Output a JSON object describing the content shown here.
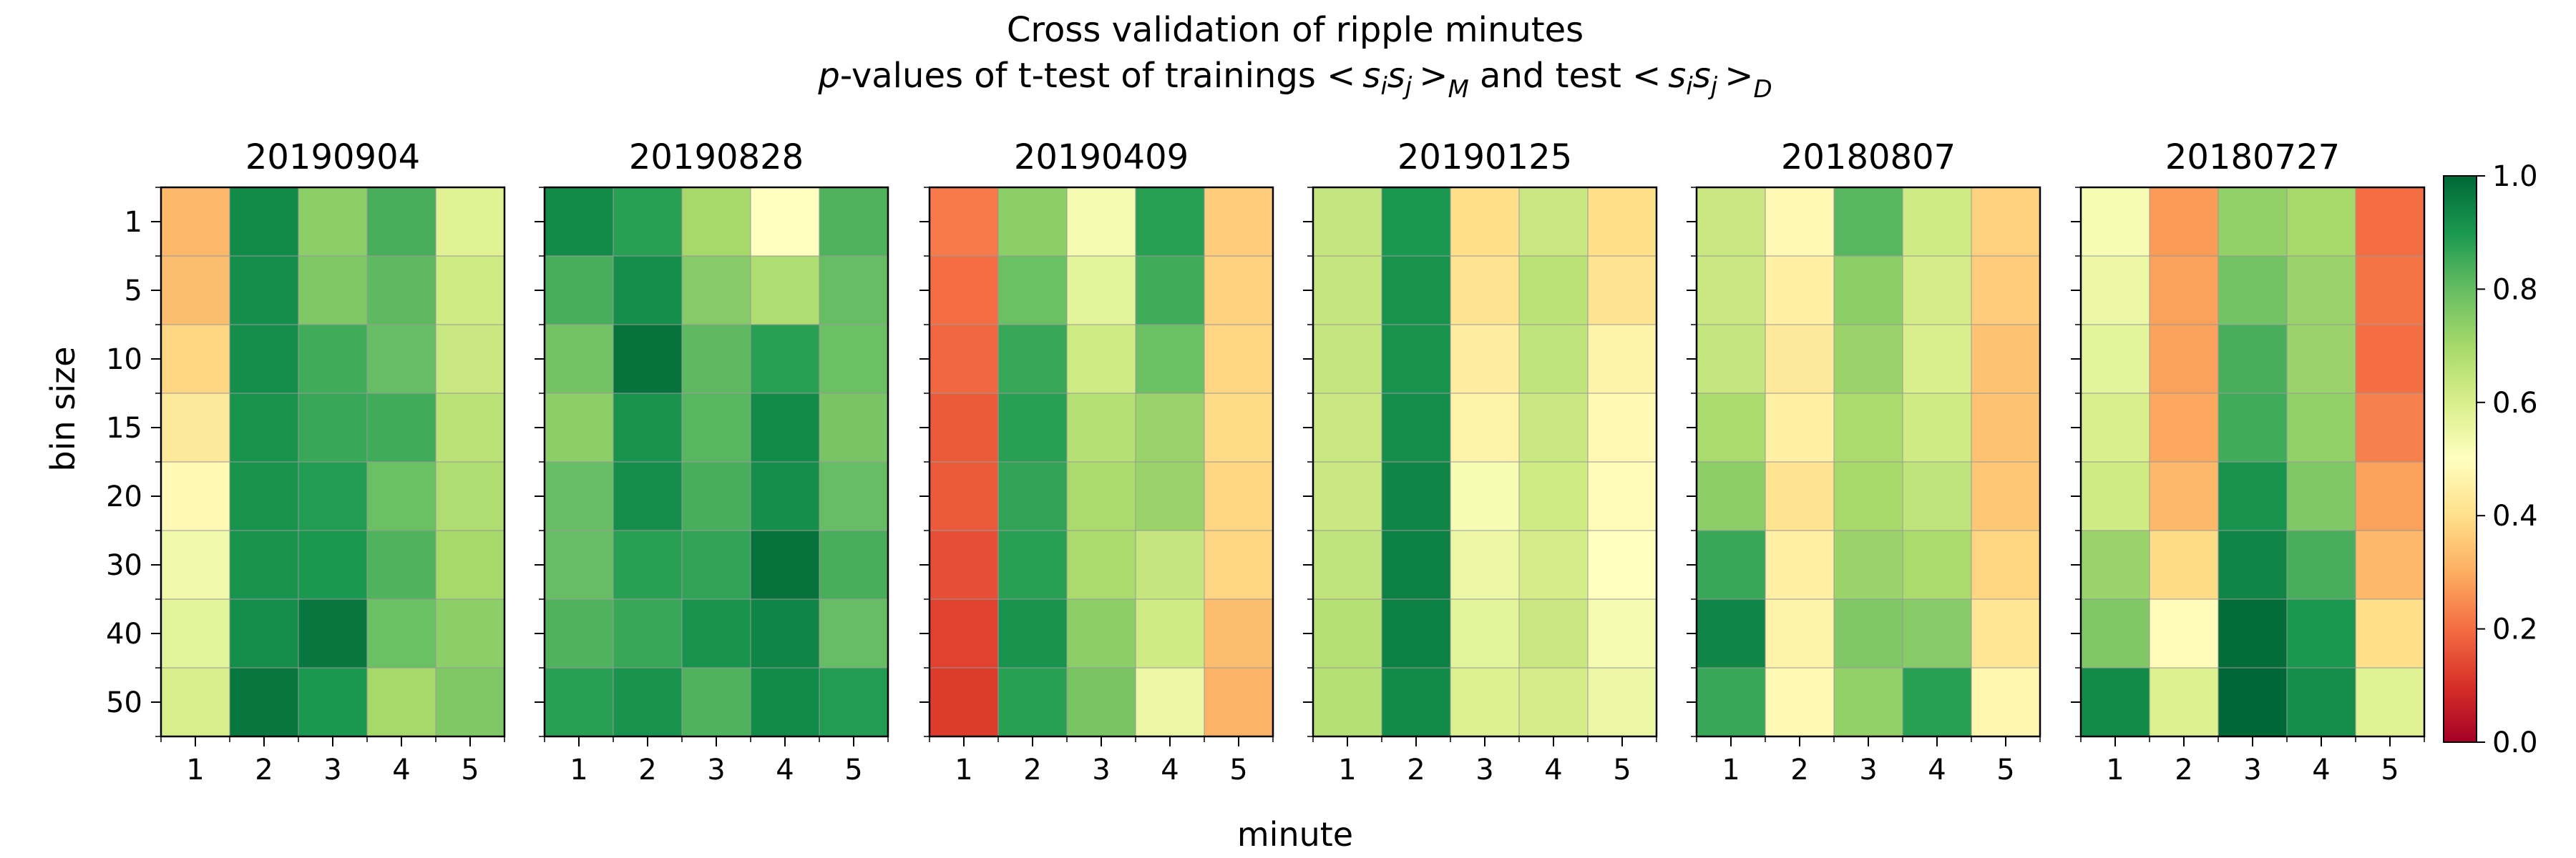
{
  "suptitle": {
    "line1": "Cross validation of ripple minutes",
    "line2_italic_p": "p",
    "line2_a": "-values of t-test of trainings ",
    "line2_b": " and test "
  },
  "xlabel": "minute",
  "ylabel": "bin size",
  "colorbar": {
    "colormap": "RdYlGn",
    "ticks": [
      "0.0",
      "0.2",
      "0.4",
      "0.6",
      "0.8",
      "1.0"
    ],
    "range": [
      0,
      1
    ]
  },
  "chart_data": [
    {
      "type": "heatmap",
      "title": "20190904",
      "x": [
        "1",
        "2",
        "3",
        "4",
        "5"
      ],
      "y": [
        "1",
        "5",
        "10",
        "15",
        "20",
        "30",
        "40",
        "50"
      ],
      "values": [
        [
          0.32,
          0.93,
          0.74,
          0.84,
          0.58
        ],
        [
          0.33,
          0.92,
          0.76,
          0.81,
          0.62
        ],
        [
          0.38,
          0.92,
          0.85,
          0.8,
          0.63
        ],
        [
          0.43,
          0.91,
          0.86,
          0.85,
          0.66
        ],
        [
          0.48,
          0.91,
          0.89,
          0.79,
          0.68
        ],
        [
          0.54,
          0.91,
          0.9,
          0.83,
          0.7
        ],
        [
          0.57,
          0.92,
          0.97,
          0.79,
          0.74
        ],
        [
          0.6,
          0.97,
          0.9,
          0.7,
          0.76
        ]
      ]
    },
    {
      "type": "heatmap",
      "title": "20190828",
      "x": [
        "1",
        "2",
        "3",
        "4",
        "5"
      ],
      "y": [
        "1",
        "5",
        "10",
        "15",
        "20",
        "30",
        "40",
        "50"
      ],
      "values": [
        [
          0.93,
          0.88,
          0.7,
          0.5,
          0.83
        ],
        [
          0.84,
          0.92,
          0.75,
          0.68,
          0.8
        ],
        [
          0.78,
          0.98,
          0.81,
          0.88,
          0.79
        ],
        [
          0.74,
          0.91,
          0.82,
          0.93,
          0.77
        ],
        [
          0.8,
          0.92,
          0.84,
          0.92,
          0.8
        ],
        [
          0.8,
          0.88,
          0.87,
          0.98,
          0.84
        ],
        [
          0.83,
          0.86,
          0.91,
          0.94,
          0.8
        ],
        [
          0.88,
          0.91,
          0.83,
          0.93,
          0.89
        ]
      ]
    },
    {
      "type": "heatmap",
      "title": "20190409",
      "x": [
        "1",
        "2",
        "3",
        "4",
        "5"
      ],
      "y": [
        "1",
        "5",
        "10",
        "15",
        "20",
        "30",
        "40",
        "50"
      ],
      "values": [
        [
          0.22,
          0.74,
          0.53,
          0.88,
          0.36
        ],
        [
          0.2,
          0.79,
          0.57,
          0.85,
          0.37
        ],
        [
          0.19,
          0.86,
          0.62,
          0.79,
          0.38
        ],
        [
          0.17,
          0.88,
          0.67,
          0.72,
          0.39
        ],
        [
          0.17,
          0.87,
          0.69,
          0.72,
          0.38
        ],
        [
          0.15,
          0.88,
          0.69,
          0.64,
          0.38
        ],
        [
          0.13,
          0.91,
          0.74,
          0.62,
          0.33
        ],
        [
          0.12,
          0.88,
          0.77,
          0.55,
          0.31
        ]
      ]
    },
    {
      "type": "heatmap",
      "title": "20190125",
      "x": [
        "1",
        "2",
        "3",
        "4",
        "5"
      ],
      "y": [
        "1",
        "5",
        "10",
        "15",
        "20",
        "30",
        "40",
        "50"
      ],
      "values": [
        [
          0.64,
          0.9,
          0.4,
          0.63,
          0.4
        ],
        [
          0.64,
          0.91,
          0.41,
          0.66,
          0.41
        ],
        [
          0.64,
          0.91,
          0.44,
          0.65,
          0.46
        ],
        [
          0.63,
          0.92,
          0.46,
          0.63,
          0.48
        ],
        [
          0.63,
          0.94,
          0.52,
          0.62,
          0.49
        ],
        [
          0.65,
          0.95,
          0.55,
          0.61,
          0.5
        ],
        [
          0.67,
          0.95,
          0.57,
          0.63,
          0.53
        ],
        [
          0.67,
          0.93,
          0.59,
          0.61,
          0.55
        ]
      ]
    },
    {
      "type": "heatmap",
      "title": "20180807",
      "x": [
        "1",
        "2",
        "3",
        "4",
        "5"
      ],
      "y": [
        "1",
        "5",
        "10",
        "15",
        "20",
        "30",
        "40",
        "50"
      ],
      "values": [
        [
          0.63,
          0.48,
          0.82,
          0.62,
          0.37
        ],
        [
          0.63,
          0.45,
          0.74,
          0.61,
          0.36
        ],
        [
          0.64,
          0.43,
          0.72,
          0.6,
          0.34
        ],
        [
          0.69,
          0.45,
          0.69,
          0.62,
          0.34
        ],
        [
          0.74,
          0.41,
          0.7,
          0.65,
          0.35
        ],
        [
          0.86,
          0.45,
          0.72,
          0.69,
          0.38
        ],
        [
          0.94,
          0.46,
          0.76,
          0.75,
          0.42
        ],
        [
          0.86,
          0.48,
          0.73,
          0.88,
          0.47
        ]
      ]
    },
    {
      "type": "heatmap",
      "title": "20180727",
      "x": [
        "1",
        "2",
        "3",
        "4",
        "5"
      ],
      "y": [
        "1",
        "5",
        "10",
        "15",
        "20",
        "30",
        "40",
        "50"
      ],
      "values": [
        [
          0.52,
          0.27,
          0.73,
          0.7,
          0.2
        ],
        [
          0.55,
          0.28,
          0.78,
          0.72,
          0.21
        ],
        [
          0.57,
          0.28,
          0.84,
          0.72,
          0.2
        ],
        [
          0.6,
          0.29,
          0.85,
          0.73,
          0.23
        ],
        [
          0.62,
          0.32,
          0.91,
          0.76,
          0.28
        ],
        [
          0.72,
          0.39,
          0.94,
          0.84,
          0.32
        ],
        [
          0.76,
          0.49,
          0.99,
          0.9,
          0.4
        ],
        [
          0.93,
          0.59,
          1.0,
          0.92,
          0.58
        ]
      ]
    }
  ]
}
